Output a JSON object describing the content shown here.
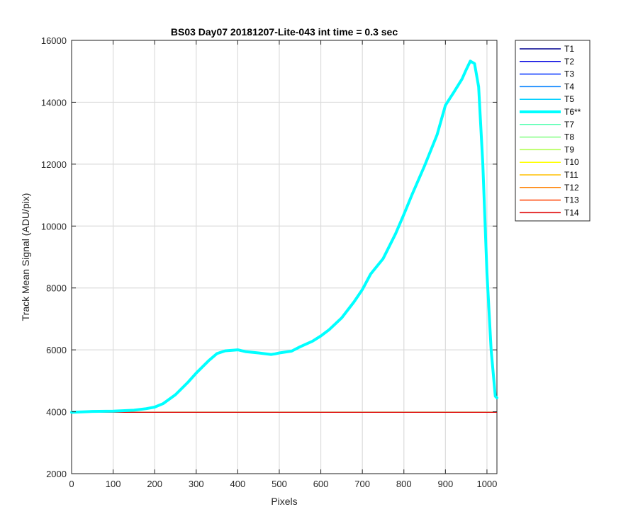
{
  "chart_data": {
    "type": "line",
    "title": "BS03 Day07 20181207-Lite-043 int time = 0.3 sec",
    "xlabel": "Pixels",
    "ylabel": "Track Mean Signal (ADU/pix)",
    "xlim": [
      0,
      1024
    ],
    "ylim": [
      2000,
      16000
    ],
    "xticks": [
      0,
      100,
      200,
      300,
      400,
      500,
      600,
      700,
      800,
      900,
      1000
    ],
    "yticks": [
      2000,
      4000,
      6000,
      8000,
      10000,
      12000,
      14000,
      16000
    ],
    "grid": true,
    "legend_position": "outside-top-right",
    "flat_series_value": 3980,
    "series": [
      {
        "name": "T1",
        "color": "#00008f",
        "highlight": false
      },
      {
        "name": "T2",
        "color": "#0000df",
        "highlight": false
      },
      {
        "name": "T3",
        "color": "#0030ff",
        "highlight": false
      },
      {
        "name": "T4",
        "color": "#0080ff",
        "highlight": false
      },
      {
        "name": "T5",
        "color": "#00cfff",
        "highlight": false
      },
      {
        "name": "T6**",
        "color": "#00ffff",
        "highlight": true,
        "x": [
          0,
          50,
          100,
          150,
          180,
          200,
          220,
          250,
          280,
          300,
          330,
          350,
          370,
          390,
          400,
          420,
          450,
          480,
          490,
          500,
          530,
          550,
          580,
          600,
          620,
          650,
          680,
          700,
          720,
          750,
          780,
          800,
          820,
          850,
          880,
          900,
          920,
          940,
          950,
          960,
          970,
          980,
          990,
          1000,
          1010,
          1020,
          1024
        ],
        "y": [
          3980,
          4010,
          4020,
          4050,
          4100,
          4150,
          4260,
          4550,
          4950,
          5250,
          5650,
          5880,
          5970,
          5990,
          6000,
          5940,
          5900,
          5850,
          5870,
          5900,
          5960,
          6100,
          6280,
          6450,
          6650,
          7030,
          7550,
          7950,
          8450,
          8950,
          9750,
          10380,
          11030,
          11950,
          12950,
          13900,
          14320,
          14750,
          15050,
          15330,
          15250,
          14500,
          12000,
          8500,
          6000,
          4500,
          4450
        ]
      },
      {
        "name": "T7",
        "color": "#50ffaf",
        "highlight": false
      },
      {
        "name": "T8",
        "color": "#80ff80",
        "highlight": false
      },
      {
        "name": "T9",
        "color": "#b0ff50",
        "highlight": false
      },
      {
        "name": "T10",
        "color": "#ffff00",
        "highlight": false
      },
      {
        "name": "T11",
        "color": "#ffc000",
        "highlight": false
      },
      {
        "name": "T12",
        "color": "#ff8000",
        "highlight": false
      },
      {
        "name": "T13",
        "color": "#ff4000",
        "highlight": false
      },
      {
        "name": "T14",
        "color": "#df0000",
        "highlight": false
      }
    ]
  }
}
